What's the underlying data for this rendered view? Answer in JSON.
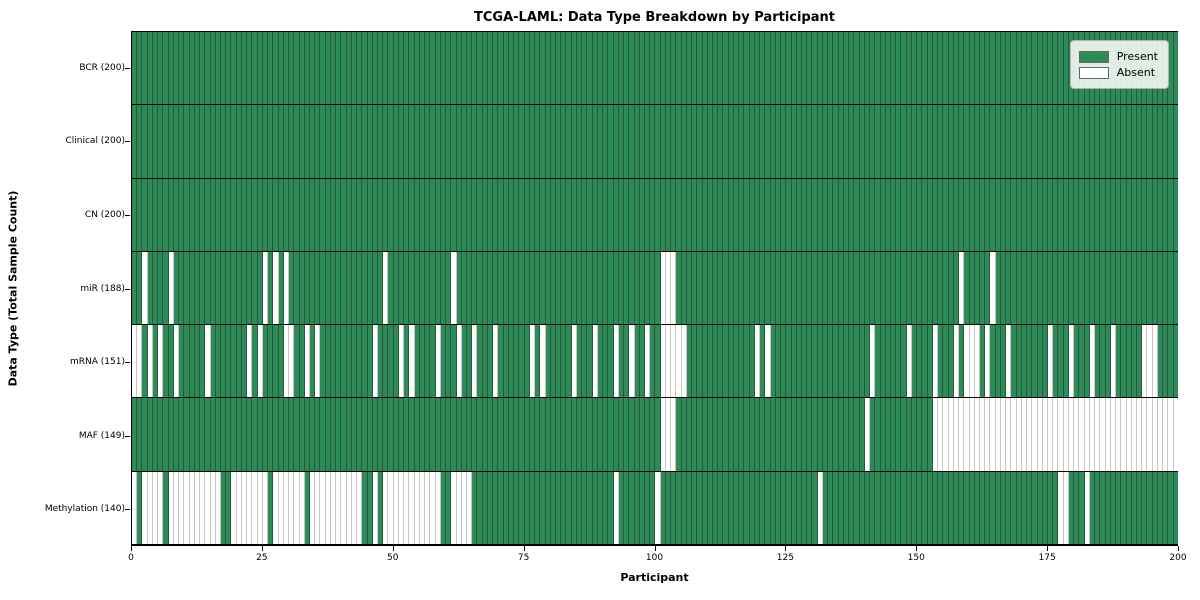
{
  "title": "TCGA-LAML: Data Type Breakdown by Participant",
  "colors": {
    "present": "#2e8b57",
    "absent": "#ffffff",
    "cell_edge_on_green": "rgba(20,45,30,0.5)",
    "cell_edge_on_white": "#c6c6c6"
  },
  "legend": {
    "entries": [
      {
        "label": "Present",
        "color": "#2e8b57"
      },
      {
        "label": "Absent",
        "color": "#ffffff"
      }
    ]
  },
  "chart_data": {
    "type": "heatmap",
    "title": "TCGA-LAML: Data Type Breakdown by Participant",
    "xlabel": "Participant",
    "ylabel": "Data Type (Total Sample Count)",
    "x_range": [
      0,
      200
    ],
    "x_ticks": [
      0,
      25,
      50,
      75,
      100,
      125,
      150,
      175,
      200
    ],
    "n_participants": 200,
    "grid": false,
    "legend_position": "upper right",
    "rows": [
      {
        "label": "BCR (200)",
        "data_type": "BCR",
        "present_count": 200,
        "absent_participants": []
      },
      {
        "label": "Clinical (200)",
        "data_type": "Clinical",
        "present_count": 200,
        "absent_participants": []
      },
      {
        "label": "CN (200)",
        "data_type": "CN",
        "present_count": 200,
        "absent_participants": []
      },
      {
        "label": "miR (188)",
        "data_type": "miR",
        "present_count": 188,
        "absent_participants": [
          2,
          7,
          25,
          27,
          29,
          48,
          61,
          101,
          102,
          103,
          158,
          164
        ]
      },
      {
        "label": "mRNA (151)",
        "data_type": "mRNA",
        "present_count": 151,
        "absent_participants": [
          0,
          1,
          3,
          5,
          8,
          14,
          22,
          24,
          29,
          30,
          33,
          35,
          46,
          51,
          53,
          58,
          62,
          65,
          69,
          76,
          78,
          84,
          88,
          92,
          95,
          98,
          101,
          102,
          103,
          104,
          105,
          119,
          121,
          141,
          148,
          153,
          157,
          159,
          160,
          161,
          163,
          167,
          175,
          179,
          183,
          187,
          193,
          194,
          195
        ]
      },
      {
        "label": "MAF (149)",
        "data_type": "MAF",
        "present_count": 149,
        "absent_participants": [
          101,
          102,
          103,
          140,
          153,
          154,
          155,
          156,
          157,
          158,
          159,
          160,
          161,
          162,
          163,
          164,
          165,
          166,
          167,
          168,
          169,
          170,
          171,
          172,
          173,
          174,
          175,
          176,
          177,
          178,
          179,
          180,
          181,
          182,
          183,
          184,
          185,
          186,
          187,
          188,
          189,
          190,
          191,
          192,
          193,
          194,
          195,
          196,
          197,
          198,
          199
        ]
      },
      {
        "label": "Methylation (140)",
        "data_type": "Methylation",
        "present_count": 140,
        "absent_participants": [
          0,
          2,
          3,
          4,
          5,
          7,
          8,
          9,
          10,
          11,
          12,
          13,
          14,
          15,
          16,
          19,
          20,
          21,
          22,
          23,
          24,
          25,
          27,
          28,
          29,
          30,
          31,
          32,
          34,
          35,
          36,
          37,
          38,
          39,
          40,
          41,
          42,
          43,
          46,
          48,
          49,
          50,
          51,
          52,
          53,
          54,
          55,
          56,
          57,
          58,
          61,
          62,
          63,
          64,
          92,
          100,
          131,
          177,
          178,
          182
        ]
      }
    ]
  }
}
